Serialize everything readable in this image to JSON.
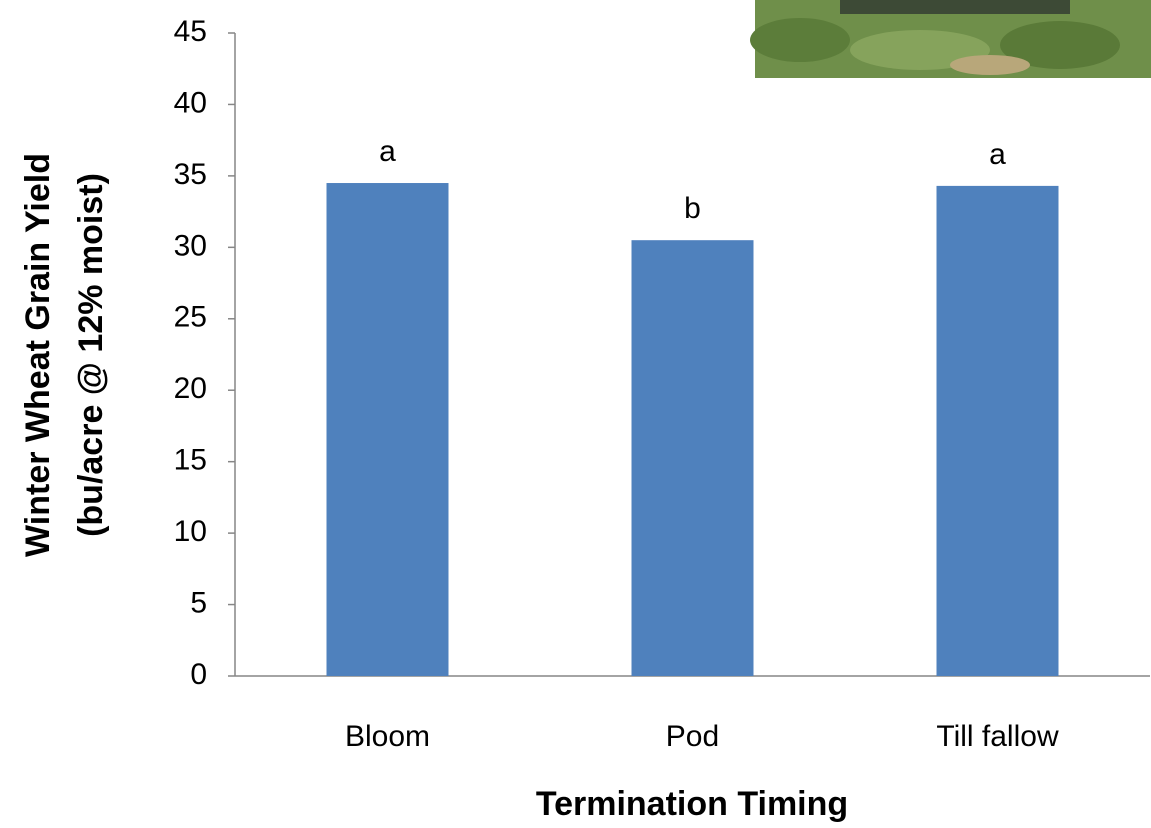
{
  "chart_data": {
    "type": "bar",
    "categories": [
      "Bloom",
      "Pod",
      "Till fallow"
    ],
    "values": [
      34.5,
      30.5,
      34.3
    ],
    "significance_labels": [
      "a",
      "b",
      "a"
    ],
    "color": "#4f81bd",
    "ylim": [
      0,
      45
    ],
    "yticks": [
      0,
      5,
      10,
      15,
      20,
      25,
      30,
      35,
      40,
      45
    ],
    "grid": false,
    "x_label": "Termination Timing",
    "y_label": [
      "Winter Wheat Grain Yield",
      "(bu/acre @ 12% moist)"
    ]
  }
}
